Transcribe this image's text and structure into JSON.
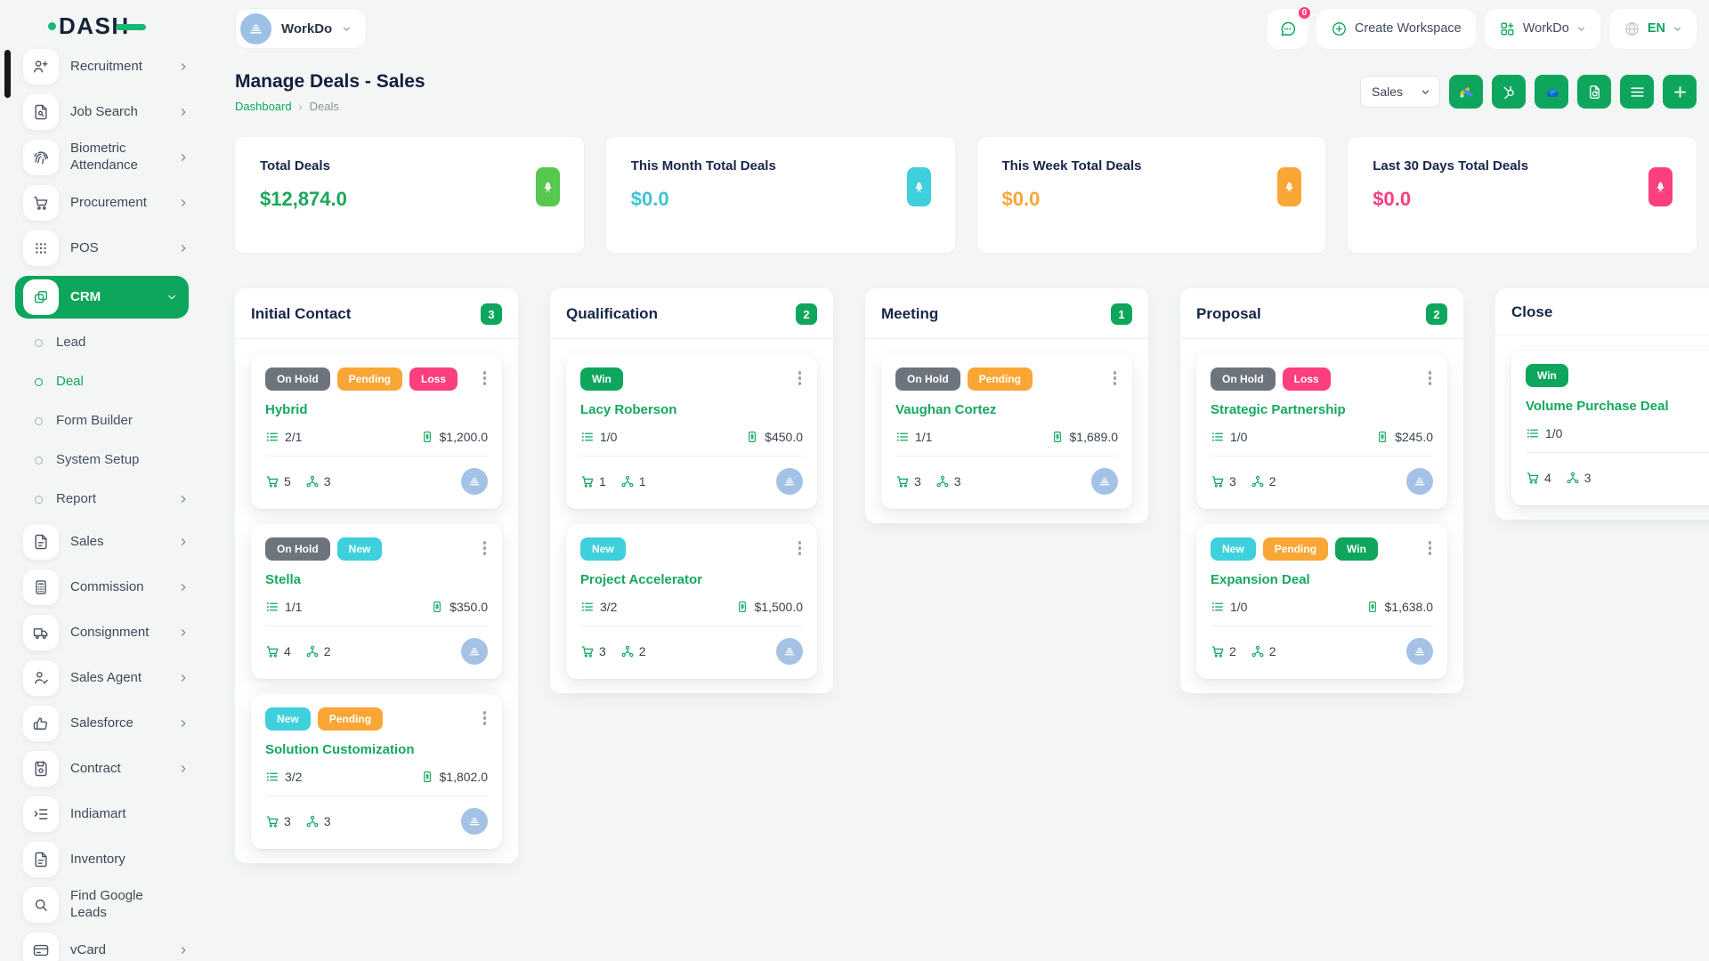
{
  "app": {
    "name": "DASH"
  },
  "header": {
    "workspace_pill": "WorkDo",
    "messages_count": "0",
    "create_workspace": "Create Workspace",
    "apps_dropdown": "WorkDo",
    "language": "EN"
  },
  "sidebar": {
    "items": [
      {
        "label": "Recruitment",
        "icon": "user-plus",
        "chevron": true
      },
      {
        "label": "Job Search",
        "icon": "document-search",
        "chevron": true
      },
      {
        "label": "Biometric Attendance",
        "icon": "fingerprint",
        "chevron": true
      },
      {
        "label": "Procurement",
        "icon": "cart",
        "chevron": true
      },
      {
        "label": "POS",
        "icon": "grid-dots",
        "chevron": true
      },
      {
        "label": "CRM",
        "icon": "crm-squares",
        "chevron": "down",
        "active": true
      },
      {
        "label": "Lead",
        "type": "sub"
      },
      {
        "label": "Deal",
        "type": "sub",
        "active": true
      },
      {
        "label": "Form Builder",
        "type": "sub"
      },
      {
        "label": "System Setup",
        "type": "sub"
      },
      {
        "label": "Report",
        "type": "sub",
        "chevron": true
      },
      {
        "label": "Sales",
        "icon": "document",
        "chevron": true
      },
      {
        "label": "Commission",
        "icon": "calculator",
        "chevron": true
      },
      {
        "label": "Consignment",
        "icon": "truck",
        "chevron": true
      },
      {
        "label": "Sales Agent",
        "icon": "user-check",
        "chevron": true
      },
      {
        "label": "Salesforce",
        "icon": "thumbs-up",
        "chevron": true
      },
      {
        "label": "Contract",
        "icon": "floppy",
        "chevron": true
      },
      {
        "label": "Indiamart",
        "icon": "list-indent",
        "chevron": false
      },
      {
        "label": "Inventory",
        "icon": "document",
        "chevron": false
      },
      {
        "label": "Find Google Leads",
        "icon": "search",
        "chevron": false
      },
      {
        "label": "vCard",
        "icon": "credit-card",
        "chevron": true
      }
    ]
  },
  "page": {
    "title": "Manage Deals - Sales",
    "breadcrumb": [
      "Dashboard",
      "Deals"
    ],
    "breadcrumb_separator": "›",
    "pipeline_select": "Sales",
    "toolbar_buttons": [
      {
        "icon": "google-ads",
        "name": "google-ads-button"
      },
      {
        "icon": "hubspot",
        "name": "hubspot-button"
      },
      {
        "icon": "onedrive",
        "name": "onedrive-button"
      },
      {
        "icon": "export-doc",
        "name": "export-button"
      },
      {
        "icon": "list-lines",
        "name": "list-view-button"
      },
      {
        "icon": "plus",
        "name": "add-button"
      }
    ],
    "accent_color": "#0da65c"
  },
  "stats": [
    {
      "label": "Total Deals",
      "value": "$12,874.0",
      "icon_bg": "#56c84f",
      "value_color": "#1aa75b"
    },
    {
      "label": "This Month Total Deals",
      "value": "$0.0",
      "icon_bg": "#3ed0dc",
      "value_color": "#3ec4d1"
    },
    {
      "label": "This Week Total Deals",
      "value": "$0.0",
      "icon_bg": "#f9a636",
      "value_color": "#f9a636"
    },
    {
      "label": "Last 30 Days Total Deals",
      "value": "$0.0",
      "icon_bg": "#fc3f7e",
      "value_color": "#fc3f7e"
    }
  ],
  "tag_colors": {
    "on_hold": "#6e747e",
    "new": "#3ed0dc",
    "pending": "#f9a636",
    "loss": "#fc3f7e",
    "win": "#0da65c"
  },
  "board": {
    "columns": [
      {
        "title": "Initial Contact",
        "count": "3",
        "cards": [
          {
            "tags": [
              {
                "label": "On Hold",
                "color": "#6e747e"
              },
              {
                "label": "Pending",
                "color": "#f9a636"
              },
              {
                "label": "Loss",
                "color": "#fc3f7e"
              }
            ],
            "name": "Hybrid",
            "tasks": "2/1",
            "amount": "$1,200.0",
            "products": "5",
            "users": "3"
          },
          {
            "tags": [
              {
                "label": "On Hold",
                "color": "#6e747e"
              },
              {
                "label": "New",
                "color": "#3ed0dc"
              }
            ],
            "name": "Stella",
            "tasks": "1/1",
            "amount": "$350.0",
            "products": "4",
            "users": "2"
          },
          {
            "tags": [
              {
                "label": "New",
                "color": "#3ed0dc"
              },
              {
                "label": "Pending",
                "color": "#f9a636"
              }
            ],
            "name": "Solution Customization",
            "tasks": "3/2",
            "amount": "$1,802.0",
            "products": "3",
            "users": "3"
          }
        ]
      },
      {
        "title": "Qualification",
        "count": "2",
        "cards": [
          {
            "tags": [
              {
                "label": "Win",
                "color": "#0da65c"
              }
            ],
            "name": "Lacy Roberson",
            "tasks": "1/0",
            "amount": "$450.0",
            "products": "1",
            "users": "1"
          },
          {
            "tags": [
              {
                "label": "New",
                "color": "#3ed0dc"
              }
            ],
            "name": "Project Accelerator",
            "tasks": "3/2",
            "amount": "$1,500.0",
            "products": "3",
            "users": "2"
          }
        ]
      },
      {
        "title": "Meeting",
        "count": "1",
        "cards": [
          {
            "tags": [
              {
                "label": "On Hold",
                "color": "#6e747e"
              },
              {
                "label": "Pending",
                "color": "#f9a636"
              }
            ],
            "name": "Vaughan Cortez",
            "tasks": "1/1",
            "amount": "$1,689.0",
            "products": "3",
            "users": "3"
          }
        ]
      },
      {
        "title": "Proposal",
        "count": "2",
        "cards": [
          {
            "tags": [
              {
                "label": "On Hold",
                "color": "#6e747e"
              },
              {
                "label": "Loss",
                "color": "#fc3f7e"
              }
            ],
            "name": "Strategic Partnership",
            "tasks": "1/0",
            "amount": "$245.0",
            "products": "3",
            "users": "2"
          },
          {
            "tags": [
              {
                "label": "New",
                "color": "#3ed0dc"
              },
              {
                "label": "Pending",
                "color": "#f9a636"
              },
              {
                "label": "Win",
                "color": "#0da65c"
              }
            ],
            "name": "Expansion Deal",
            "tasks": "1/0",
            "amount": "$1,638.0",
            "products": "2",
            "users": "2"
          }
        ]
      },
      {
        "title": "Close",
        "count": "",
        "cards": [
          {
            "tags": [
              {
                "label": "Win",
                "color": "#0da65c"
              }
            ],
            "name": "Volume Purchase Deal",
            "tasks": "1/0",
            "amount": "",
            "products": "4",
            "users": "3"
          }
        ]
      }
    ]
  }
}
